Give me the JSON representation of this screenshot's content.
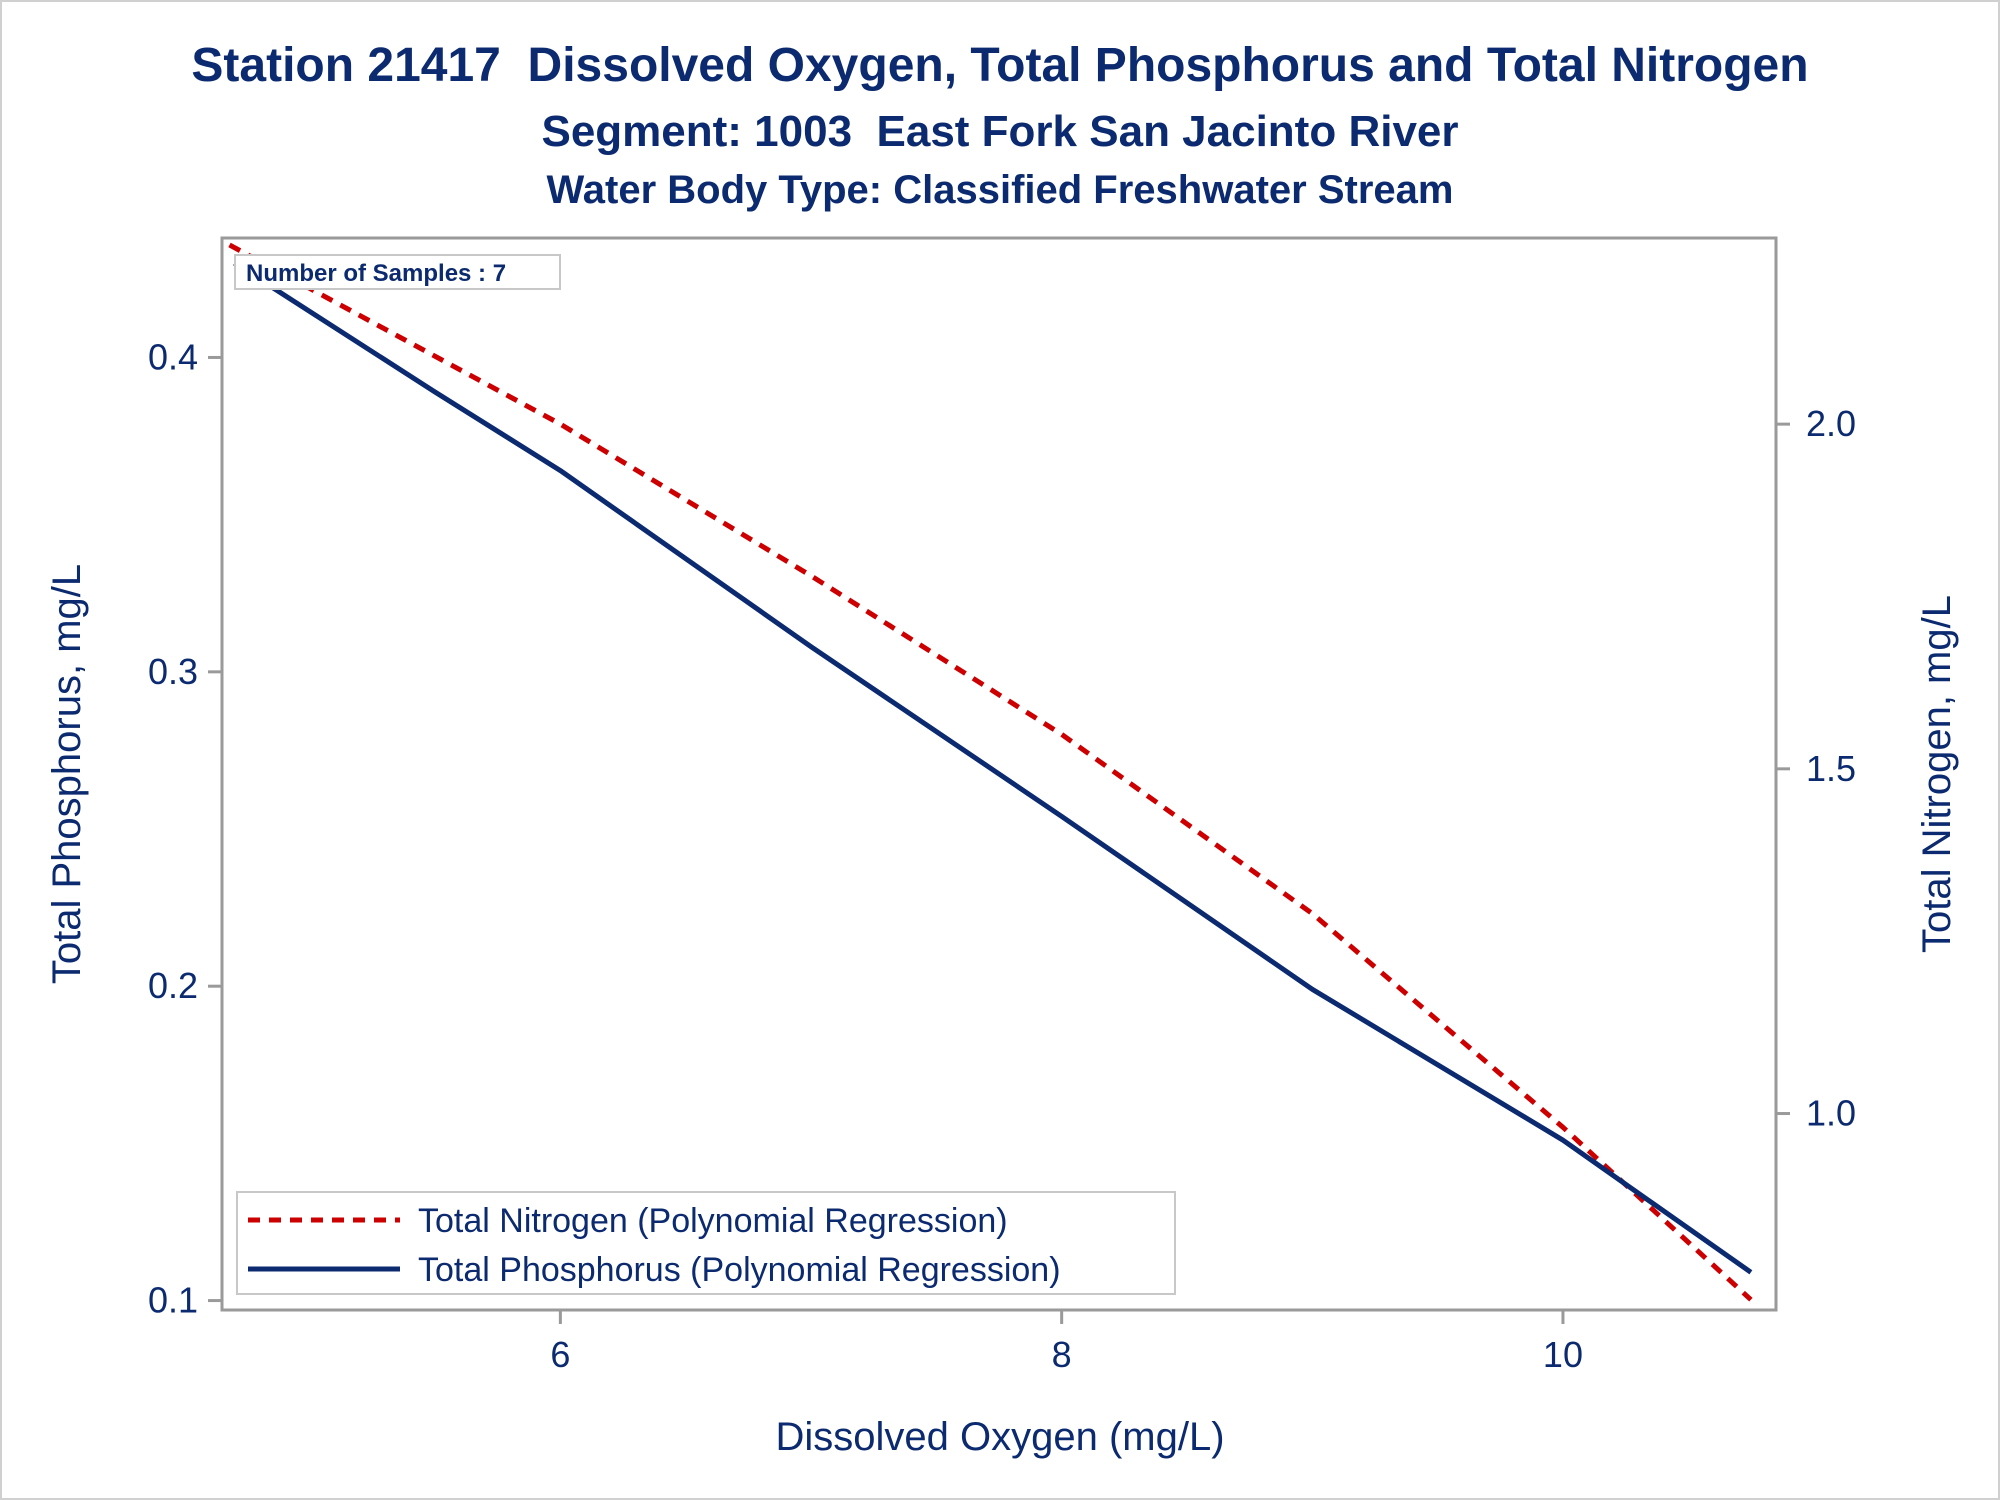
{
  "title": "Station 21417  Dissolved Oxygen, Total Phosphorus and Total Nitrogen",
  "subtitle": "Segment: 1003  East Fork San Jacinto River",
  "subtitle2": "Water Body Type: Classified Freshwater Stream",
  "colors": {
    "text": "#0b2a6f",
    "nitrogen": "#cc0000",
    "phosphorus": "#0b2a6f",
    "frame": "#9a9a9a"
  },
  "chart_data": {
    "type": "line",
    "xlabel": "Dissolved Oxygen (mg/L)",
    "ylabel": "Total Phosphorus, mg/L",
    "y2label": "Total Nitrogen, mg/L",
    "xlim": [
      4.65,
      10.85
    ],
    "ylim": [
      0.097,
      0.438
    ],
    "y2lim": [
      0.715,
      2.27
    ],
    "xticks": [
      "6",
      "8",
      "10"
    ],
    "xtick_values": [
      6,
      8,
      10
    ],
    "yticks": [
      "0.1",
      "0.2",
      "0.3",
      "0.4"
    ],
    "ytick_values": [
      0.1,
      0.2,
      0.3,
      0.4
    ],
    "y2ticks": [
      "1.0",
      "1.5",
      "2.0"
    ],
    "y2tick_values": [
      1.0,
      1.5,
      2.0
    ],
    "annotation": "Number of Samples : 7",
    "legend_position": "bottom-left",
    "series": [
      {
        "name": "Total Nitrogen (Polynomial Regression)",
        "axis": "right",
        "style": "dashed",
        "x": [
          4.68,
          6.0,
          7.0,
          8.0,
          9.0,
          10.0,
          10.75
        ],
        "y": [
          2.26,
          2.0,
          1.78,
          1.55,
          1.29,
          0.98,
          0.73
        ]
      },
      {
        "name": "Total Phosphorus (Polynomial Regression)",
        "axis": "left",
        "style": "solid",
        "x": [
          4.7,
          5.5,
          6.0,
          7.0,
          8.0,
          9.0,
          10.0,
          10.75
        ],
        "y": [
          0.43,
          0.389,
          0.364,
          0.308,
          0.254,
          0.199,
          0.151,
          0.109
        ]
      }
    ]
  }
}
